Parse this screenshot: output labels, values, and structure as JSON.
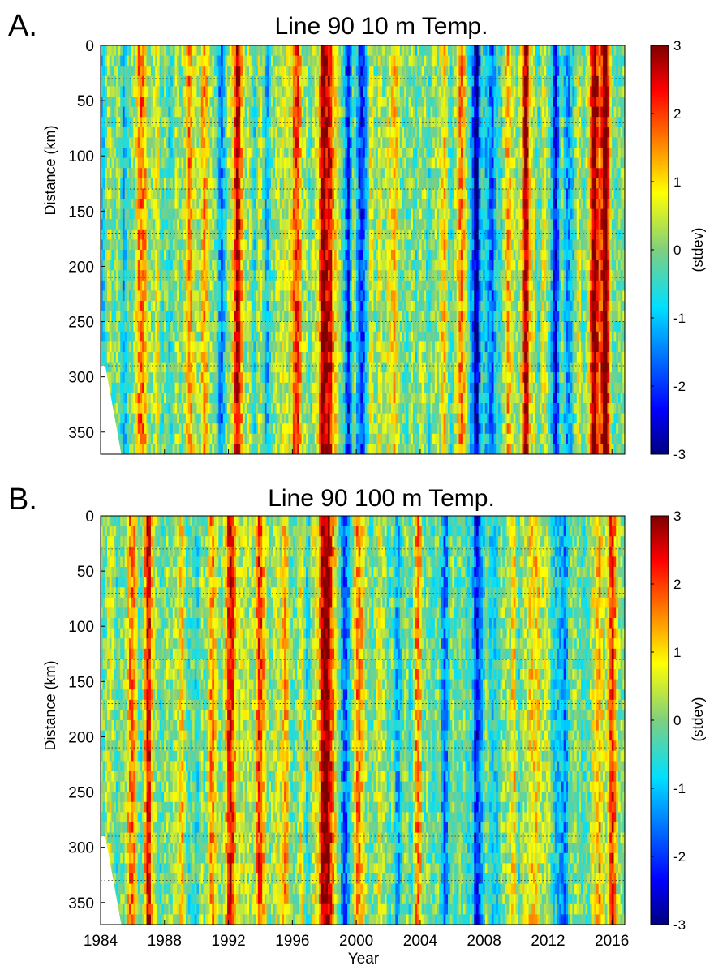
{
  "figure": {
    "xlabel": "Year"
  },
  "chart_data": [
    {
      "type": "heatmap",
      "panel_label": "A.",
      "title": "Line 90 10 m Temp.",
      "xlabel": "",
      "ylabel": "Distance (km)",
      "xlim": [
        1984,
        2016.8
      ],
      "ylim": [
        0,
        370
      ],
      "y_reversed": true,
      "xticks": [
        1988,
        1992,
        1996,
        2000,
        2004,
        2008,
        2012,
        2016
      ],
      "xtick_labels_shown": false,
      "yticks": [
        0,
        50,
        100,
        150,
        200,
        250,
        300,
        350
      ],
      "dotted_gridlines_y": [
        30,
        70,
        130,
        170,
        210,
        250,
        290,
        330
      ],
      "colorbar": {
        "label": "(stdev)",
        "range": [
          -3,
          3
        ],
        "ticks": [
          3,
          2,
          1,
          0,
          -1,
          -2,
          -3
        ],
        "colormap": "jet"
      },
      "data_start_year_at_0km": 1984.3,
      "data_start_year_at_370km": 1985.3,
      "anomaly_events": [
        {
          "year": 1986.5,
          "value": 1.4
        },
        {
          "year": 1987.5,
          "value": 0.8
        },
        {
          "year": 1989.5,
          "value": 1.2
        },
        {
          "year": 1990.5,
          "value": 1.0
        },
        {
          "year": 1992.6,
          "value": 2.6
        },
        {
          "year": 1996.3,
          "value": 2.3
        },
        {
          "year": 1997.9,
          "value": 3.0
        },
        {
          "year": 1998.4,
          "value": 2.0
        },
        {
          "year": 2002.2,
          "value": 0.9
        },
        {
          "year": 2005.5,
          "value": 1.1
        },
        {
          "year": 2006.5,
          "value": 2.0
        },
        {
          "year": 2009.5,
          "value": 1.8
        },
        {
          "year": 2010.6,
          "value": 2.6
        },
        {
          "year": 2014.9,
          "value": 2.8
        },
        {
          "year": 2015.6,
          "value": 3.0
        },
        {
          "year": 1994.5,
          "value": -1.0
        },
        {
          "year": 1999.5,
          "value": -2.0
        },
        {
          "year": 2000.3,
          "value": -1.6
        },
        {
          "year": 2007.5,
          "value": -2.2
        },
        {
          "year": 2008.5,
          "value": -1.8
        },
        {
          "year": 2012.5,
          "value": -2.0
        },
        {
          "year": 2013.3,
          "value": -1.5
        },
        {
          "year": 1985.5,
          "value": -1.0
        },
        {
          "year": 1991.5,
          "value": -1.3
        }
      ]
    },
    {
      "type": "heatmap",
      "panel_label": "B.",
      "title": "Line 90 100 m Temp.",
      "xlabel": "Year",
      "ylabel": "Distance (km)",
      "xlim": [
        1984,
        2016.8
      ],
      "ylim": [
        0,
        370
      ],
      "y_reversed": true,
      "xticks": [
        1984,
        1988,
        1992,
        1996,
        2000,
        2004,
        2008,
        2012,
        2016
      ],
      "xtick_labels_shown": true,
      "yticks": [
        0,
        50,
        100,
        150,
        200,
        250,
        300,
        350
      ],
      "dotted_gridlines_y": [
        30,
        70,
        130,
        170,
        210,
        250,
        290,
        330
      ],
      "colorbar": {
        "label": "(stdev)",
        "range": [
          -3,
          3
        ],
        "ticks": [
          3,
          2,
          1,
          0,
          -1,
          -2,
          -3
        ],
        "colormap": "jet"
      },
      "data_start_year_at_0km": 1984.3,
      "data_start_year_at_370km": 1985.3,
      "anomaly_events": [
        {
          "year": 1986.0,
          "value": 1.8
        },
        {
          "year": 1987.0,
          "value": 2.2
        },
        {
          "year": 1989.0,
          "value": 1.0
        },
        {
          "year": 1991.0,
          "value": 1.2
        },
        {
          "year": 1992.2,
          "value": 2.4
        },
        {
          "year": 1994.0,
          "value": 2.6
        },
        {
          "year": 1995.5,
          "value": 1.0
        },
        {
          "year": 1997.9,
          "value": 3.0
        },
        {
          "year": 1998.3,
          "value": 2.8
        },
        {
          "year": 2000.2,
          "value": 1.5
        },
        {
          "year": 2003.9,
          "value": 2.0
        },
        {
          "year": 2009.8,
          "value": 1.2
        },
        {
          "year": 2011.0,
          "value": 1.5
        },
        {
          "year": 2015.2,
          "value": 1.5
        },
        {
          "year": 2016.0,
          "value": 2.8
        },
        {
          "year": 1989.6,
          "value": -1.0
        },
        {
          "year": 1999.3,
          "value": -1.0
        },
        {
          "year": 2002.5,
          "value": -1.3
        },
        {
          "year": 2005.5,
          "value": -1.5
        },
        {
          "year": 2007.5,
          "value": -1.5
        },
        {
          "year": 2013.0,
          "value": -1.8
        }
      ]
    }
  ]
}
